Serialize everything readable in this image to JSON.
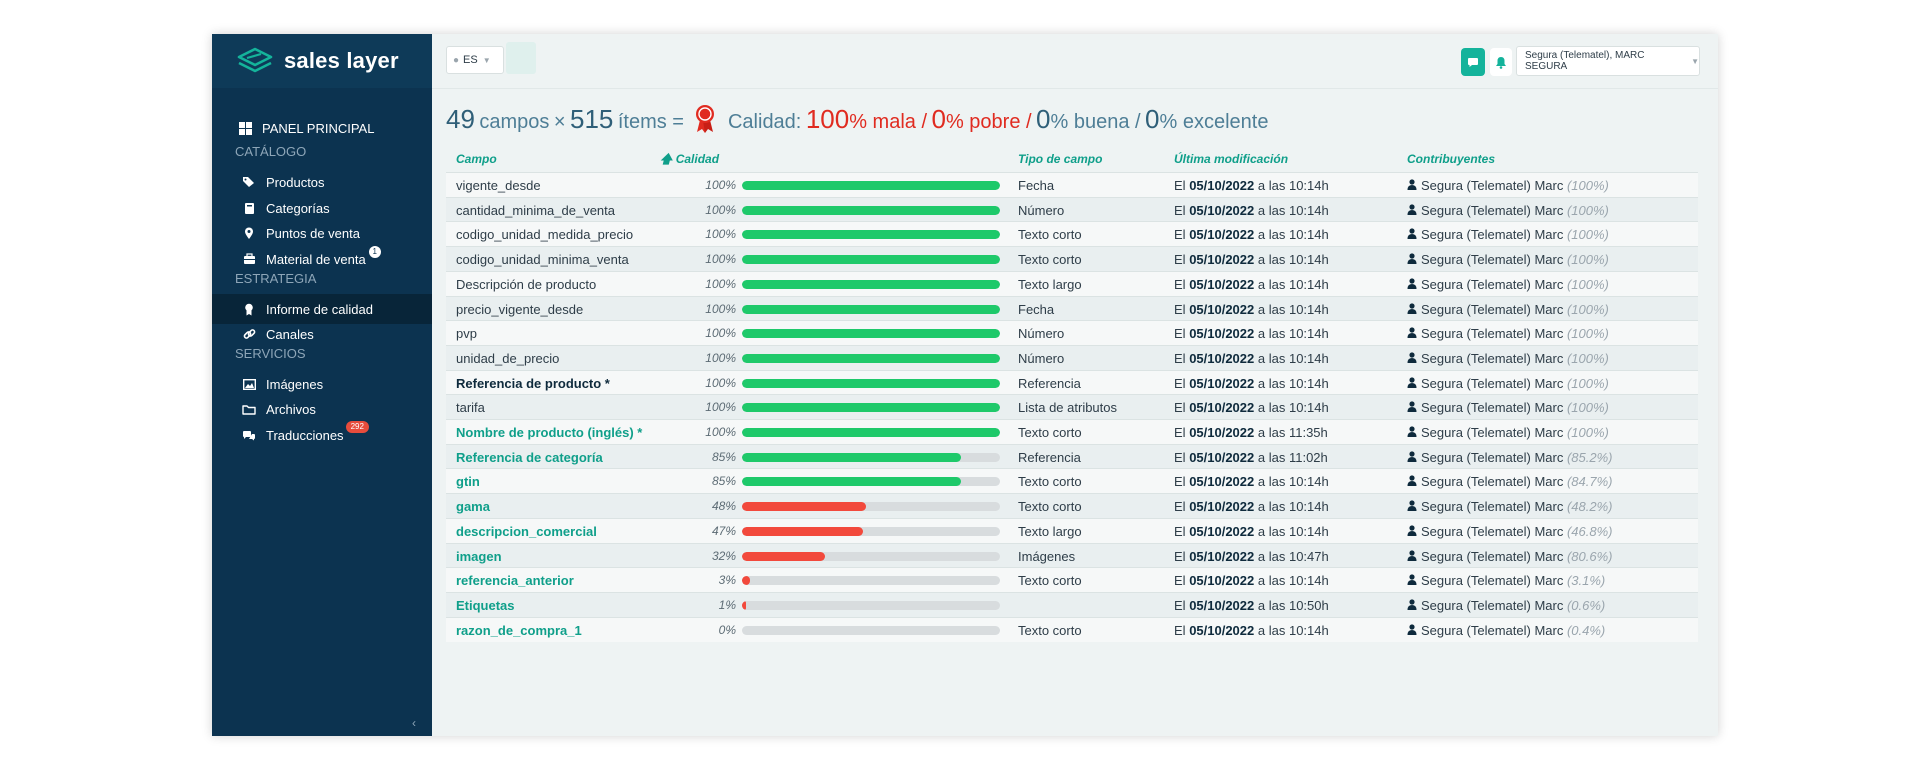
{
  "app": {
    "logo_text": "sales layer"
  },
  "sidebar": {
    "panel_principal": "PANEL PRINCIPAL",
    "sections": [
      {
        "title": "CATÁLOGO",
        "items": [
          {
            "label": "Productos",
            "icon": "tags-icon"
          },
          {
            "label": "Categorías",
            "icon": "book-icon"
          },
          {
            "label": "Puntos de venta",
            "icon": "map-pin-icon"
          },
          {
            "label": "Material de venta",
            "icon": "briefcase-icon",
            "badge": "1"
          }
        ]
      },
      {
        "title": "ESTRATEGIA",
        "items": [
          {
            "label": "Informe de calidad",
            "icon": "award-icon",
            "active": true
          },
          {
            "label": "Canales",
            "icon": "link-icon"
          }
        ]
      },
      {
        "title": "SERVICIOS",
        "items": [
          {
            "label": "Imágenes",
            "icon": "image-icon"
          },
          {
            "label": "Archivos",
            "icon": "folder-icon"
          },
          {
            "label": "Traducciones",
            "icon": "translate-icon",
            "badge": "292"
          }
        ]
      }
    ],
    "collapse_glyph": "‹"
  },
  "topbar": {
    "language": "ES",
    "user": "Segura (Telematel), MARC SEGURA",
    "accent": "#14b39b"
  },
  "summary": {
    "fields_count": "49",
    "fields_label": "campos",
    "times_sign": "×",
    "items_count": "515",
    "items_label": "ítems =",
    "quality_label": "Calidad:",
    "mala_pct": "100",
    "mala_label": "% mala /",
    "pobre_pct": "0",
    "pobre_label": "% pobre /",
    "buena_pct": "0",
    "buena_label": "% buena /",
    "excelente_pct": "0",
    "excelente_label": "% excelente"
  },
  "table": {
    "columns": {
      "field": "Campo",
      "quality": "Calidad",
      "type": "Tipo de campo",
      "modified": "Última modificación",
      "contributors": "Contribuyentes"
    },
    "colors": {
      "good": "#1ec96a",
      "bad": "#f2493c",
      "track": "#d8dcde",
      "link": "#0f9f8a"
    },
    "rows": [
      {
        "field": "vigente_desde",
        "pct_label": "100%",
        "quality": 100,
        "type": "Fecha",
        "mod_prefix": "El",
        "mod_date": "05/10/2022",
        "mod_time": "a las 10:14h",
        "contributor": "Segura (Telematel) Marc",
        "contrib_pct": "(100%)",
        "style": "plain"
      },
      {
        "field": "cantidad_minima_de_venta",
        "pct_label": "100%",
        "quality": 100,
        "type": "Número",
        "mod_prefix": "El",
        "mod_date": "05/10/2022",
        "mod_time": "a las 10:14h",
        "contributor": "Segura (Telematel) Marc",
        "contrib_pct": "(100%)",
        "style": "plain"
      },
      {
        "field": "codigo_unidad_medida_precio",
        "pct_label": "100%",
        "quality": 100,
        "type": "Texto corto",
        "mod_prefix": "El",
        "mod_date": "05/10/2022",
        "mod_time": "a las 10:14h",
        "contributor": "Segura (Telematel) Marc",
        "contrib_pct": "(100%)",
        "style": "plain"
      },
      {
        "field": "codigo_unidad_minima_venta",
        "pct_label": "100%",
        "quality": 100,
        "type": "Texto corto",
        "mod_prefix": "El",
        "mod_date": "05/10/2022",
        "mod_time": "a las 10:14h",
        "contributor": "Segura (Telematel) Marc",
        "contrib_pct": "(100%)",
        "style": "plain"
      },
      {
        "field": "Descripción de producto",
        "pct_label": "100%",
        "quality": 100,
        "type": "Texto largo",
        "mod_prefix": "El",
        "mod_date": "05/10/2022",
        "mod_time": "a las 10:14h",
        "contributor": "Segura (Telematel) Marc",
        "contrib_pct": "(100%)",
        "style": "plain"
      },
      {
        "field": "precio_vigente_desde",
        "pct_label": "100%",
        "quality": 100,
        "type": "Fecha",
        "mod_prefix": "El",
        "mod_date": "05/10/2022",
        "mod_time": "a las 10:14h",
        "contributor": "Segura (Telematel) Marc",
        "contrib_pct": "(100%)",
        "style": "plain"
      },
      {
        "field": "pvp",
        "pct_label": "100%",
        "quality": 100,
        "type": "Número",
        "mod_prefix": "El",
        "mod_date": "05/10/2022",
        "mod_time": "a las 10:14h",
        "contributor": "Segura (Telematel) Marc",
        "contrib_pct": "(100%)",
        "style": "plain"
      },
      {
        "field": "unidad_de_precio",
        "pct_label": "100%",
        "quality": 100,
        "type": "Número",
        "mod_prefix": "El",
        "mod_date": "05/10/2022",
        "mod_time": "a las 10:14h",
        "contributor": "Segura (Telematel) Marc",
        "contrib_pct": "(100%)",
        "style": "plain"
      },
      {
        "field": "Referencia de producto *",
        "pct_label": "100%",
        "quality": 100,
        "type": "Referencia",
        "mod_prefix": "El",
        "mod_date": "05/10/2022",
        "mod_time": "a las 10:14h",
        "contributor": "Segura (Telematel) Marc",
        "contrib_pct": "(100%)",
        "style": "bold"
      },
      {
        "field": "tarifa",
        "pct_label": "100%",
        "quality": 100,
        "type": "Lista de atributos",
        "mod_prefix": "El",
        "mod_date": "05/10/2022",
        "mod_time": "a las 10:14h",
        "contributor": "Segura (Telematel) Marc",
        "contrib_pct": "(100%)",
        "style": "plain"
      },
      {
        "field": "Nombre de producto (inglés) *",
        "pct_label": "100%",
        "quality": 100,
        "type": "Texto corto",
        "mod_prefix": "El",
        "mod_date": "05/10/2022",
        "mod_time": "a las 11:35h",
        "contributor": "Segura (Telematel) Marc",
        "contrib_pct": "(100%)",
        "style": "teal"
      },
      {
        "field": "Referencia de categoría",
        "pct_label": "85%",
        "quality": 85,
        "type": "Referencia",
        "mod_prefix": "El",
        "mod_date": "05/10/2022",
        "mod_time": "a las 11:02h",
        "contributor": "Segura (Telematel) Marc",
        "contrib_pct": "(85.2%)",
        "style": "teal"
      },
      {
        "field": "gtin",
        "pct_label": "85%",
        "quality": 85,
        "type": "Texto corto",
        "mod_prefix": "El",
        "mod_date": "05/10/2022",
        "mod_time": "a las 10:14h",
        "contributor": "Segura (Telematel) Marc",
        "contrib_pct": "(84.7%)",
        "style": "teal"
      },
      {
        "field": "gama",
        "pct_label": "48%",
        "quality": 48,
        "type": "Texto corto",
        "mod_prefix": "El",
        "mod_date": "05/10/2022",
        "mod_time": "a las 10:14h",
        "contributor": "Segura (Telematel) Marc",
        "contrib_pct": "(48.2%)",
        "style": "teal"
      },
      {
        "field": "descripcion_comercial",
        "pct_label": "47%",
        "quality": 47,
        "type": "Texto largo",
        "mod_prefix": "El",
        "mod_date": "05/10/2022",
        "mod_time": "a las 10:14h",
        "contributor": "Segura (Telematel) Marc",
        "contrib_pct": "(46.8%)",
        "style": "teal"
      },
      {
        "field": "imagen",
        "pct_label": "32%",
        "quality": 32,
        "type": "Imágenes",
        "mod_prefix": "El",
        "mod_date": "05/10/2022",
        "mod_time": "a las 10:47h",
        "contributor": "Segura (Telematel) Marc",
        "contrib_pct": "(80.6%)",
        "style": "teal"
      },
      {
        "field": "referencia_anterior",
        "pct_label": "3%",
        "quality": 3,
        "type": "Texto corto",
        "mod_prefix": "El",
        "mod_date": "05/10/2022",
        "mod_time": "a las 10:14h",
        "contributor": "Segura (Telematel) Marc",
        "contrib_pct": "(3.1%)",
        "style": "teal"
      },
      {
        "field": "Etiquetas",
        "pct_label": "1%",
        "quality": 1,
        "type": "",
        "mod_prefix": "El",
        "mod_date": "05/10/2022",
        "mod_time": "a las 10:50h",
        "contributor": "Segura (Telematel) Marc",
        "contrib_pct": "(0.6%)",
        "style": "teal"
      },
      {
        "field": "razon_de_compra_1",
        "pct_label": "0%",
        "quality": 0,
        "type": "Texto corto",
        "mod_prefix": "El",
        "mod_date": "05/10/2022",
        "mod_time": "a las 10:14h",
        "contributor": "Segura (Telematel) Marc",
        "contrib_pct": "(0.4%)",
        "style": "teal"
      }
    ]
  }
}
